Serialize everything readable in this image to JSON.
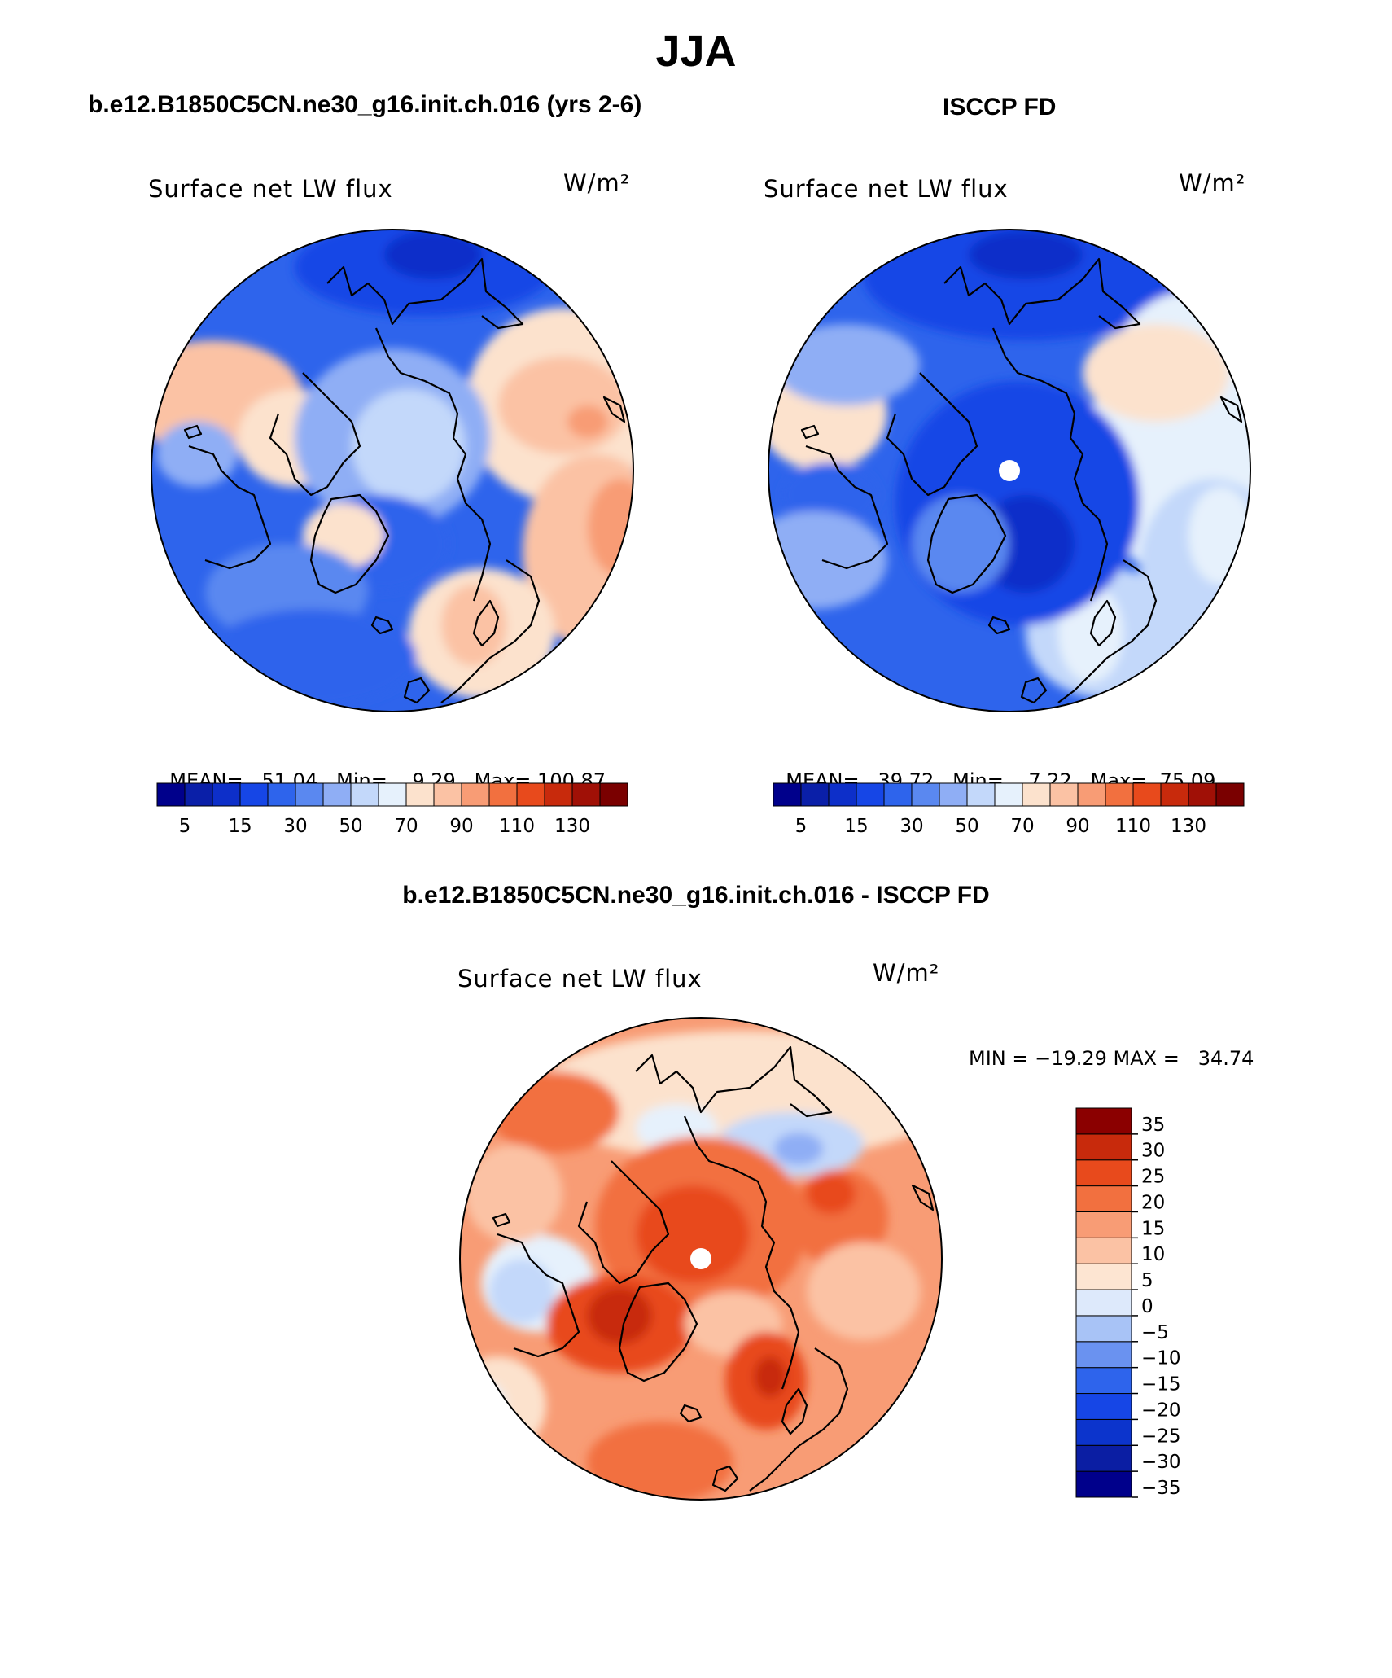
{
  "title": "JJA",
  "panels": [
    {
      "id": "model",
      "header": "b.e12.B1850C5CN.ne30_g16.init.ch.016 (yrs 2-6)",
      "variable": "Surface net LW flux",
      "units": "W/m²",
      "stats": {
        "mean_label": "MEAN=",
        "mean": "51.04",
        "min_label": "Min=",
        "min": "9.29",
        "max_label": "Max=",
        "max": "100.87"
      },
      "pole_hole": false
    },
    {
      "id": "obs",
      "header": "ISCCP FD",
      "variable": "Surface net LW flux",
      "units": "W/m²",
      "stats": {
        "mean_label": "MEAN=",
        "mean": "39.72",
        "min_label": "Min=",
        "min": "7.22",
        "max_label": "Max=",
        "max": "75.09"
      },
      "pole_hole": true
    },
    {
      "id": "diff",
      "header": "b.e12.B1850C5CN.ne30_g16.init.ch.016 - ISCCP FD",
      "variable": "Surface net LW flux",
      "units": "W/m²",
      "minmax": "MIN = −19.29 MAX =   34.74",
      "pole_hole": true
    }
  ],
  "abs_colorbar": {
    "colors": [
      "#00008b",
      "#0a1fa8",
      "#0d2fc9",
      "#1646e6",
      "#2e64ec",
      "#5a88f0",
      "#8faef5",
      "#c3d8fa",
      "#e6f1fc",
      "#fce2cd",
      "#fbc2a4",
      "#f89c75",
      "#f2703f",
      "#e84a1c",
      "#c82a0c",
      "#a01006",
      "#7a0000"
    ],
    "tick_labels": [
      "5",
      "15",
      "30",
      "50",
      "70",
      "90",
      "110",
      "130"
    ]
  },
  "diff_colorbar": {
    "colors": [
      "#00008b",
      "#0b1ea3",
      "#0c34cc",
      "#1646e6",
      "#2e64ec",
      "#6a92f0",
      "#a8c3f6",
      "#dde9fb",
      "#fde5d2",
      "#fbc2a4",
      "#f89c75",
      "#f2703f",
      "#e84a1c",
      "#c82a0c",
      "#8b0000"
    ],
    "tick_labels": [
      "35",
      "30",
      "25",
      "20",
      "15",
      "10",
      "5",
      "0",
      "−5",
      "−10",
      "−15",
      "−20",
      "−25",
      "−30",
      "−35"
    ]
  }
}
